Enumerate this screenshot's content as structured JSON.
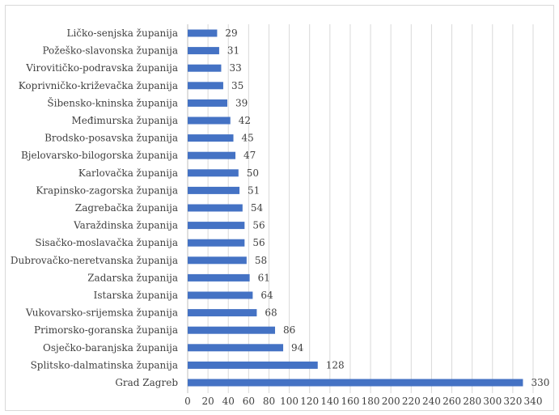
{
  "chart_data": {
    "type": "bar",
    "orientation": "horizontal",
    "title": "",
    "xlabel": "",
    "ylabel": "",
    "xlim": [
      0,
      340
    ],
    "x_ticks": [
      0,
      20,
      40,
      60,
      80,
      100,
      120,
      140,
      160,
      180,
      200,
      220,
      240,
      260,
      280,
      300,
      320,
      340
    ],
    "grid": true,
    "legend": "none",
    "bar_color": "#4472c4",
    "categories": [
      "Ličko-senjska županija",
      "Požeško-slavonska županija",
      "Virovitičko-podravska županija",
      "Koprivničko-križevačka županija",
      "Šibensko-kninska županija",
      "Međimurska županija",
      "Brodsko-posavska županija",
      "Bjelovarsko-bilogorska županija",
      "Karlovačka županija",
      "Krapinsko-zagorska županija",
      "Zagrebačka županija",
      "Varaždinska županija",
      "Sisačko-moslavačka županija",
      "Dubrovačko-neretvanska županija",
      "Zadarska županija",
      "Istarska županija",
      "Vukovarsko-srijemska županija",
      "Primorsko-goranska županija",
      "Osječko-baranjska županija",
      "Splitsko-dalmatinska županija",
      "Grad Zagreb"
    ],
    "values": [
      29,
      31,
      33,
      35,
      39,
      42,
      45,
      47,
      50,
      51,
      54,
      56,
      56,
      58,
      61,
      64,
      68,
      86,
      94,
      128,
      330
    ]
  }
}
